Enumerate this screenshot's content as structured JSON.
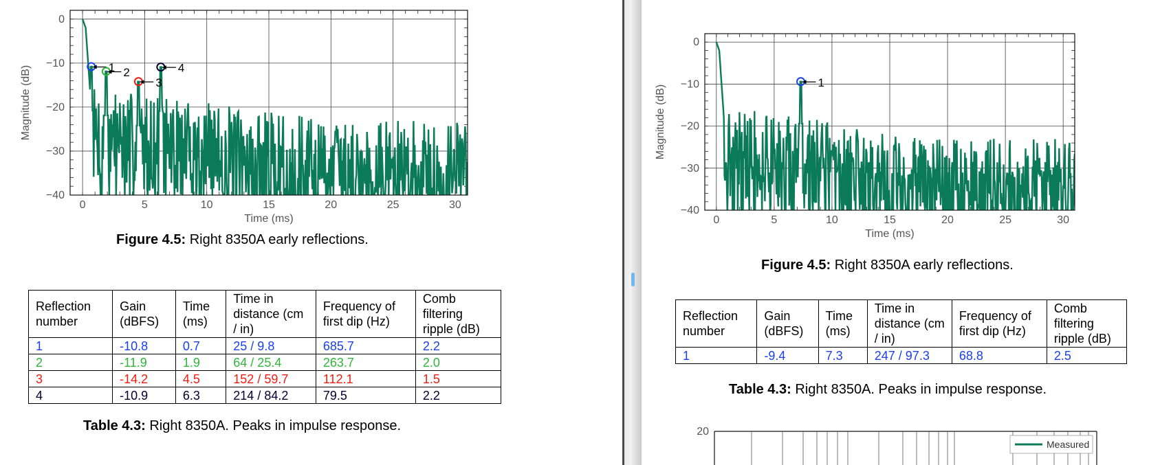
{
  "figure": {
    "caption_bold": "Figure 4.5:",
    "caption_text": " Right 8350A early reflections."
  },
  "table": {
    "caption_bold": "Table 4.3:",
    "caption_text": " Right 8350A. Peaks in impulse response.",
    "headers": [
      "Reflection number",
      "Gain (dBFS)",
      "Time (ms)",
      "Time in distance (cm / in)",
      "Frequency of first dip (Hz)",
      "Comb filtering ripple (dB)"
    ]
  },
  "colors": {
    "impulse_line": "#0b7a57",
    "reflection_1": "#1a3ff0",
    "reflection_2": "#2fb53a",
    "reflection_3": "#f01d12",
    "reflection_4": "#000033"
  },
  "left": {
    "rows": [
      {
        "cells": [
          "1",
          "-10.8",
          "0.7",
          "25 / 9.8",
          "685.7",
          "2.2"
        ],
        "color": "#1a3ff0"
      },
      {
        "cells": [
          "2",
          "-11.9",
          "1.9",
          "64 / 25.4",
          "263.7",
          "2.0"
        ],
        "color": "#2fb53a"
      },
      {
        "cells": [
          "3",
          "-14.2",
          "4.5",
          "152 / 59.7",
          "112.1",
          "1.5"
        ],
        "color": "#f01d12"
      },
      {
        "cells": [
          "4",
          "-10.9",
          "6.3",
          "214 / 84.2",
          "79.5",
          "2.2"
        ],
        "color": "#000033"
      }
    ],
    "chart_data": {
      "type": "line",
      "title": "",
      "xlabel": "Time (ms)",
      "ylabel": "Magnitude (dB)",
      "xlim": [
        -1,
        31
      ],
      "ylim": [
        -40,
        2
      ],
      "xticks": [
        0,
        5,
        10,
        15,
        20,
        25,
        30
      ],
      "yticks": [
        0,
        -10,
        -20,
        -30,
        -40
      ],
      "grid": true,
      "series": [
        {
          "name": "",
          "color": "#0b7a57",
          "seed": 7
        }
      ],
      "peaks": [
        {
          "label": "1",
          "x": 0.7,
          "y": -10.8,
          "color": "#1a3ff0"
        },
        {
          "label": "2",
          "x": 1.9,
          "y": -11.9,
          "color": "#2fb53a"
        },
        {
          "label": "3",
          "x": 4.5,
          "y": -14.2,
          "color": "#f01d12"
        },
        {
          "label": "4",
          "x": 6.3,
          "y": -10.9,
          "color": "#000033"
        }
      ]
    }
  },
  "right": {
    "rows": [
      {
        "cells": [
          "1",
          "-9.4",
          "7.3",
          "247 / 97.3",
          "68.8",
          "2.5"
        ],
        "color": "#1a3ff0"
      }
    ],
    "chart_data": {
      "type": "line",
      "title": "",
      "xlabel": "Time (ms)",
      "ylabel": "Magnitude (dB)",
      "xlim": [
        -1,
        31
      ],
      "ylim": [
        -40,
        2
      ],
      "xticks": [
        0,
        5,
        10,
        15,
        20,
        25,
        30
      ],
      "yticks": [
        0,
        -10,
        -20,
        -30,
        -40
      ],
      "grid": true,
      "series": [
        {
          "name": "",
          "color": "#0b7a57",
          "seed": 21
        }
      ],
      "peaks": [
        {
          "label": "1",
          "x": 7.3,
          "y": -9.4,
          "color": "#1a3ff0"
        }
      ]
    },
    "next_chart": {
      "yticks": [
        20
      ],
      "legend": "Measured",
      "legend_color": "#0b7a57"
    }
  }
}
